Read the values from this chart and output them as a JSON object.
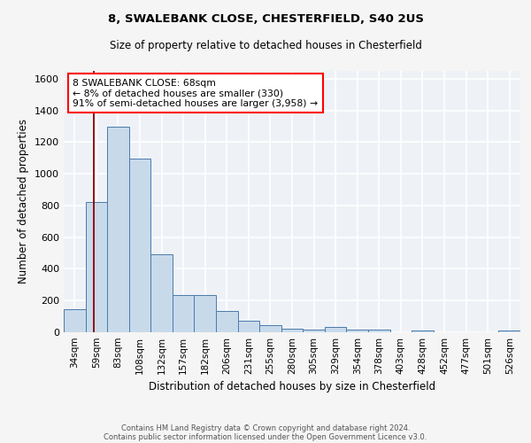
{
  "title_line1": "8, SWALEBANK CLOSE, CHESTERFIELD, S40 2US",
  "title_line2": "Size of property relative to detached houses in Chesterfield",
  "xlabel": "Distribution of detached houses by size in Chesterfield",
  "ylabel": "Number of detached properties",
  "bin_labels": [
    "34sqm",
    "59sqm",
    "83sqm",
    "108sqm",
    "132sqm",
    "157sqm",
    "182sqm",
    "206sqm",
    "231sqm",
    "255sqm",
    "280sqm",
    "305sqm",
    "329sqm",
    "354sqm",
    "378sqm",
    "403sqm",
    "428sqm",
    "452sqm",
    "477sqm",
    "501sqm",
    "526sqm"
  ],
  "bar_values": [
    145,
    820,
    1300,
    1095,
    490,
    235,
    235,
    135,
    75,
    45,
    25,
    15,
    35,
    15,
    15,
    0,
    10,
    0,
    0,
    0,
    10
  ],
  "bar_color": "#c8daea",
  "bar_edge_color": "#4a7aaa",
  "annotation_text": "8 SWALEBANK CLOSE: 68sqm\n← 8% of detached houses are smaller (330)\n91% of semi-detached houses are larger (3,958) →",
  "annotation_box_color": "white",
  "annotation_box_edge_color": "red",
  "ylim": [
    0,
    1650
  ],
  "yticks": [
    0,
    200,
    400,
    600,
    800,
    1000,
    1200,
    1400,
    1600
  ],
  "footer_line1": "Contains HM Land Registry data © Crown copyright and database right 2024.",
  "footer_line2": "Contains public sector information licensed under the Open Government Licence v3.0.",
  "bg_color": "#eef2f7",
  "grid_color": "white",
  "fig_bg": "#f5f5f5"
}
